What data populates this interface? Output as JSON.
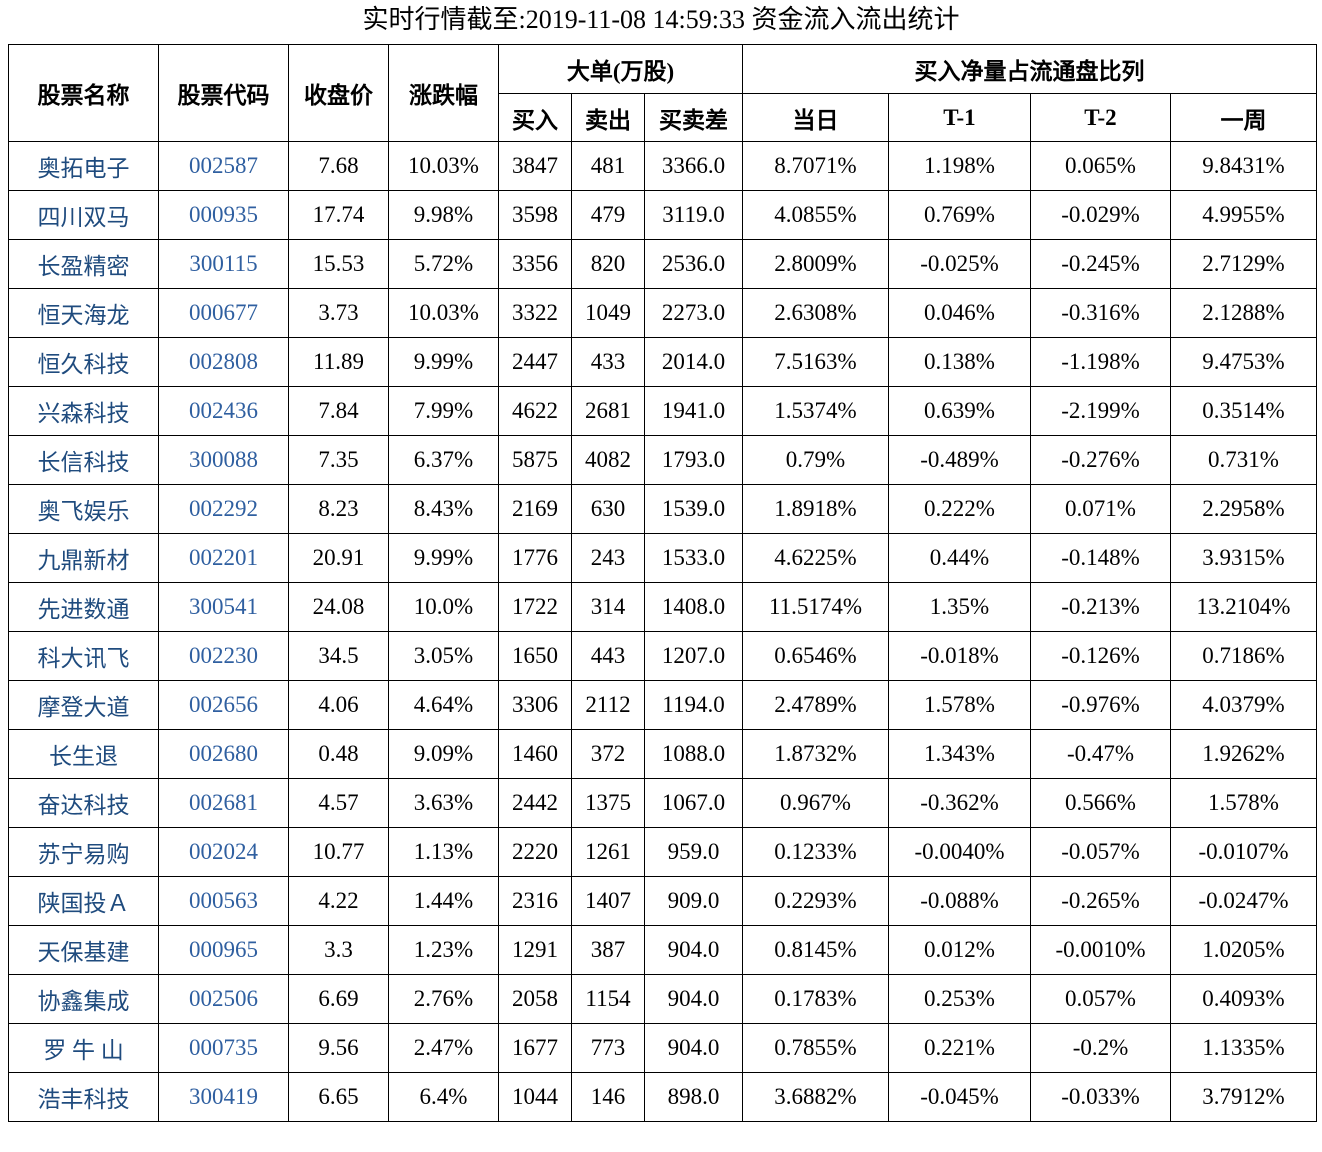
{
  "title": "实时行情截至:2019-11-08 14:59:33 资金流入流出统计",
  "table": {
    "header": {
      "row1": [
        "股票名称",
        "股票代码",
        "收盘价",
        "涨跌幅",
        "大单(万股)",
        "买入净量占流通盘比列"
      ],
      "row2": [
        "买入",
        "卖出",
        "买卖差",
        "当日",
        "T-1",
        "T-2",
        "一周"
      ]
    },
    "rows": [
      [
        "奥拓电子",
        "002587",
        "7.68",
        "10.03%",
        "3847",
        "481",
        "3366.0",
        "8.7071%",
        "1.198%",
        "0.065%",
        "9.8431%"
      ],
      [
        "四川双马",
        "000935",
        "17.74",
        "9.98%",
        "3598",
        "479",
        "3119.0",
        "4.0855%",
        "0.769%",
        "-0.029%",
        "4.9955%"
      ],
      [
        "长盈精密",
        "300115",
        "15.53",
        "5.72%",
        "3356",
        "820",
        "2536.0",
        "2.8009%",
        "-0.025%",
        "-0.245%",
        "2.7129%"
      ],
      [
        "恒天海龙",
        "000677",
        "3.73",
        "10.03%",
        "3322",
        "1049",
        "2273.0",
        "2.6308%",
        "0.046%",
        "-0.316%",
        "2.1288%"
      ],
      [
        "恒久科技",
        "002808",
        "11.89",
        "9.99%",
        "2447",
        "433",
        "2014.0",
        "7.5163%",
        "0.138%",
        "-1.198%",
        "9.4753%"
      ],
      [
        "兴森科技",
        "002436",
        "7.84",
        "7.99%",
        "4622",
        "2681",
        "1941.0",
        "1.5374%",
        "0.639%",
        "-2.199%",
        "0.3514%"
      ],
      [
        "长信科技",
        "300088",
        "7.35",
        "6.37%",
        "5875",
        "4082",
        "1793.0",
        "0.79%",
        "-0.489%",
        "-0.276%",
        "0.731%"
      ],
      [
        "奥飞娱乐",
        "002292",
        "8.23",
        "8.43%",
        "2169",
        "630",
        "1539.0",
        "1.8918%",
        "0.222%",
        "0.071%",
        "2.2958%"
      ],
      [
        "九鼎新材",
        "002201",
        "20.91",
        "9.99%",
        "1776",
        "243",
        "1533.0",
        "4.6225%",
        "0.44%",
        "-0.148%",
        "3.9315%"
      ],
      [
        "先进数通",
        "300541",
        "24.08",
        "10.0%",
        "1722",
        "314",
        "1408.0",
        "11.5174%",
        "1.35%",
        "-0.213%",
        "13.2104%"
      ],
      [
        "科大讯飞",
        "002230",
        "34.5",
        "3.05%",
        "1650",
        "443",
        "1207.0",
        "0.6546%",
        "-0.018%",
        "-0.126%",
        "0.7186%"
      ],
      [
        "摩登大道",
        "002656",
        "4.06",
        "4.64%",
        "3306",
        "2112",
        "1194.0",
        "2.4789%",
        "1.578%",
        "-0.976%",
        "4.0379%"
      ],
      [
        "长生退",
        "002680",
        "0.48",
        "9.09%",
        "1460",
        "372",
        "1088.0",
        "1.8732%",
        "1.343%",
        "-0.47%",
        "1.9262%"
      ],
      [
        "奋达科技",
        "002681",
        "4.57",
        "3.63%",
        "2442",
        "1375",
        "1067.0",
        "0.967%",
        "-0.362%",
        "0.566%",
        "1.578%"
      ],
      [
        "苏宁易购",
        "002024",
        "10.77",
        "1.13%",
        "2220",
        "1261",
        "959.0",
        "0.1233%",
        "-0.0040%",
        "-0.057%",
        "-0.0107%"
      ],
      [
        "陕国投Ａ",
        "000563",
        "4.22",
        "1.44%",
        "2316",
        "1407",
        "909.0",
        "0.2293%",
        "-0.088%",
        "-0.265%",
        "-0.0247%"
      ],
      [
        "天保基建",
        "000965",
        "3.3",
        "1.23%",
        "1291",
        "387",
        "904.0",
        "0.8145%",
        "0.012%",
        "-0.0010%",
        "1.0205%"
      ],
      [
        "协鑫集成",
        "002506",
        "6.69",
        "2.76%",
        "2058",
        "1154",
        "904.0",
        "0.1783%",
        "0.253%",
        "0.057%",
        "0.4093%"
      ],
      [
        "罗 牛 山",
        "000735",
        "9.56",
        "2.47%",
        "1677",
        "773",
        "904.0",
        "0.7855%",
        "0.221%",
        "-0.2%",
        "1.1335%"
      ],
      [
        "浩丰科技",
        "300419",
        "6.65",
        "6.4%",
        "1044",
        "146",
        "898.0",
        "3.6882%",
        "-0.045%",
        "-0.033%",
        "3.7912%"
      ]
    ]
  }
}
